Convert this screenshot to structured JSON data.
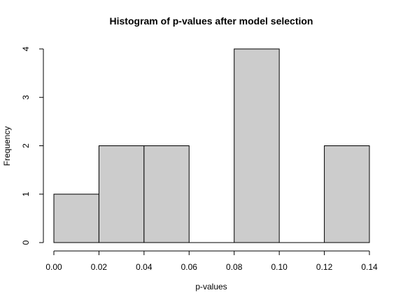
{
  "chart_data": {
    "type": "bar",
    "subtype": "histogram",
    "title": "Histogram of p-values after model selection",
    "xlabel": "p-values",
    "ylabel": "Frequency",
    "bins": [
      {
        "start": 0.0,
        "end": 0.02,
        "count": 1
      },
      {
        "start": 0.02,
        "end": 0.04,
        "count": 2
      },
      {
        "start": 0.04,
        "end": 0.06,
        "count": 2
      },
      {
        "start": 0.06,
        "end": 0.08,
        "count": 0
      },
      {
        "start": 0.08,
        "end": 0.1,
        "count": 4
      },
      {
        "start": 0.1,
        "end": 0.12,
        "count": 0
      },
      {
        "start": 0.12,
        "end": 0.14,
        "count": 2
      }
    ],
    "xlim": [
      0.0,
      0.14
    ],
    "ylim": [
      0,
      4
    ],
    "xticks": [
      "0.00",
      "0.02",
      "0.04",
      "0.06",
      "0.08",
      "0.10",
      "0.12",
      "0.14"
    ],
    "yticks": [
      "0",
      "1",
      "2",
      "3",
      "4"
    ],
    "bar_fill": "#cccccc",
    "bar_stroke": "#000000",
    "grid": false,
    "legend": "none"
  }
}
